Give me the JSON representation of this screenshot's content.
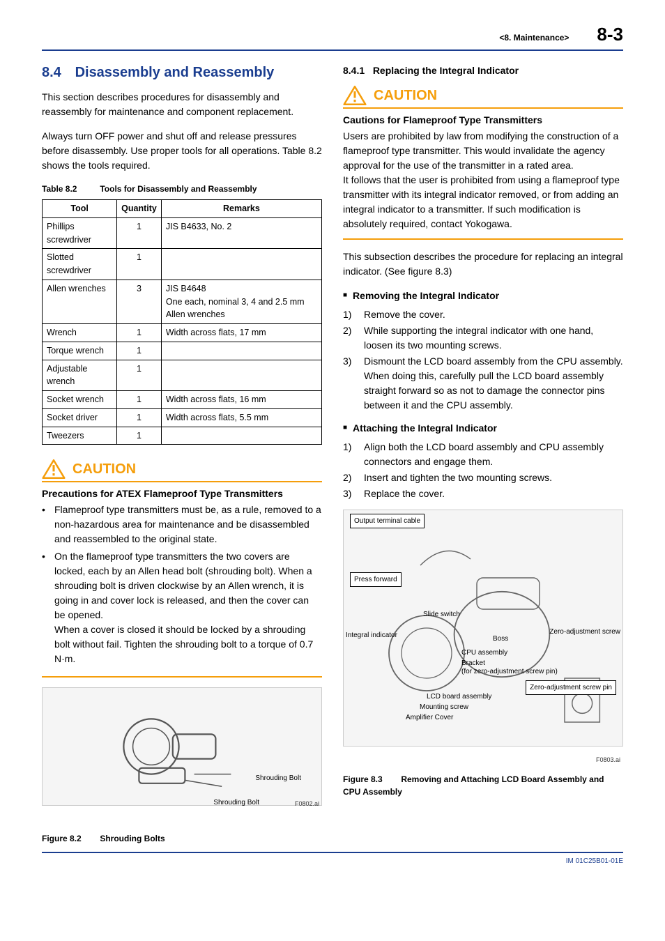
{
  "header": {
    "chapter": "<8.  Maintenance>",
    "page": "8-3"
  },
  "left": {
    "section_number": "8.4",
    "section_title": "Disassembly and Reassembly",
    "para1": "This section describes procedures for disassembly and reassembly for maintenance and component replacement.",
    "para2": "Always turn OFF power and shut off and release pressures before disassembly. Use proper tools for all operations. Table 8.2 shows the tools required.",
    "table": {
      "caption_num": "Table 8.2",
      "caption_text": "Tools for Disassembly and Reassembly",
      "columns": [
        "Tool",
        "Quantity",
        "Remarks"
      ],
      "rows": [
        [
          "Phillips screwdriver",
          "1",
          "JIS B4633, No. 2"
        ],
        [
          "Slotted screwdriver",
          "1",
          ""
        ],
        [
          "Allen wrenches",
          "3",
          "JIS B4648\nOne each, nominal 3, 4 and 2.5 mm Allen wrenches"
        ],
        [
          "Wrench",
          "1",
          "Width across flats, 17 mm"
        ],
        [
          "Torque wrench",
          "1",
          ""
        ],
        [
          "Adjustable wrench",
          "1",
          ""
        ],
        [
          "Socket wrench",
          "1",
          "Width across flats, 16 mm"
        ],
        [
          "Socket driver",
          "1",
          "Width across flats, 5.5 mm"
        ],
        [
          "Tweezers",
          "1",
          ""
        ]
      ]
    },
    "caution": {
      "title": "CAUTION",
      "subtitle": "Precautions for ATEX Flameproof Type Transmitters",
      "bullets": [
        "Flameproof type transmitters must be, as a rule, removed to a non-hazardous area for maintenance and be disassembled and reassembled to the original state.",
        "On the flameproof type transmitters the two covers are locked, each by an Allen head bolt (shrouding bolt). When a shrouding bolt is driven clockwise by an Allen wrench, it is going in and cover lock is released, and then the cover can be opened.\nWhen a cover is closed it should be locked by a shrouding bolt without fail. Tighten the shrouding bolt to a torque of 0.7 N·m."
      ]
    },
    "figure1": {
      "labels": [
        "Shrouding Bolt",
        "Shrouding Bolt"
      ],
      "ref": "F0802.ai",
      "caption_num": "Figure 8.2",
      "caption_text": "Shrouding Bolts"
    }
  },
  "right": {
    "subsection_number": "8.4.1",
    "subsection_title": "Replacing the Integral Indicator",
    "caution": {
      "title": "CAUTION",
      "subtitle": "Cautions for Flameproof Type Transmitters",
      "body": "Users are prohibited by law from modifying the construction of a flameproof type transmitter. This would invalidate the agency approval for the use of the transmitter in a rated area.\nIt follows that the user is prohibited from using a flameproof type transmitter with its integral indicator removed, or from adding an integral indicator to a transmitter. If such modification is absolutely required, contact Yokogawa."
    },
    "para1": "This subsection describes the procedure for replacing an integral indicator. (See figure 8.3)",
    "removing": {
      "heading": "Removing the Integral Indicator",
      "items": [
        "Remove the cover.",
        "While supporting the integral indicator with one hand, loosen its two mounting screws.",
        "Dismount the LCD board assembly from the CPU assembly.\nWhen doing this, carefully pull the LCD board assembly straight forward so as not to damage the connector pins between it and the CPU assembly."
      ]
    },
    "attaching": {
      "heading": "Attaching the Integral Indicator",
      "items": [
        "Align both the LCD board assembly and CPU assembly connectors and engage them.",
        "Insert and tighten the two mounting screws.",
        "Replace the cover."
      ]
    },
    "figure2": {
      "labels": {
        "output_terminal": "Output terminal cable",
        "press_forward": "Press forward",
        "slide_switch": "Slide switch",
        "integral_indicator": "Integral indicator",
        "boss": "Boss",
        "cpu_assembly": "CPU assembly",
        "bracket": "Bracket\n(for zero-adjustment screw pin)",
        "zero_adj_screw": "Zero-adjustment screw",
        "zero_adj_pin": "Zero-adjustment screw pin",
        "lcd_board": "LCD board assembly",
        "mounting_screw": "Mounting screw",
        "amplifier_cover": "Amplifier Cover"
      },
      "ref": "F0803.ai",
      "caption_num": "Figure 8.3",
      "caption_text": "Removing and Attaching LCD Board Assembly and CPU Assembly"
    }
  },
  "footer_doc": "IM 01C25B01-01E",
  "colors": {
    "accent": "#1a3d8f",
    "caution": "#f59e0b"
  }
}
